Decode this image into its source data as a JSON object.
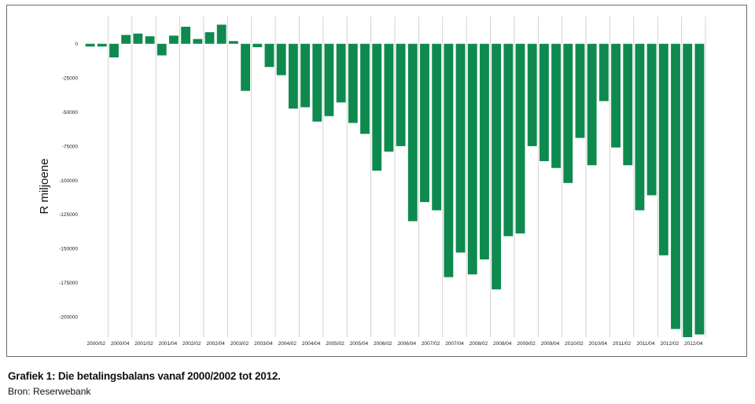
{
  "chart_data": {
    "type": "bar",
    "ylabel": "R miljoene",
    "ylim": [
      -215000,
      20000
    ],
    "yticks": [
      0,
      -25000,
      -50000,
      -75000,
      -100000,
      -125000,
      -150000,
      -175000,
      -200000
    ],
    "ytick_labels": [
      "0",
      "-25000",
      "-50000",
      "-75000",
      "-100000",
      "-125000",
      "-150000",
      "-175000",
      "-200000"
    ],
    "bar_color": "#0f8a4f",
    "grid": "vertical",
    "x_labels": [
      "2000/02",
      "2000/04",
      "2001/02",
      "2001/04",
      "2002/02",
      "2002/04",
      "2003/02",
      "2003/04",
      "2004/02",
      "2004/04",
      "2005/02",
      "2005/04",
      "2006/02",
      "2006/04",
      "2007/02",
      "2007/04",
      "2008/02",
      "2008/04",
      "2009/02",
      "2009/04",
      "2010/02",
      "2010/04",
      "2011/02",
      "2011/04",
      "2012/02",
      "2012/04"
    ],
    "values": [
      -2000,
      -2000,
      -10000,
      6500,
      7500,
      5500,
      -8500,
      6000,
      12500,
      3500,
      8500,
      14000,
      2000,
      -34500,
      -2500,
      -17000,
      -23000,
      -47500,
      -46500,
      -57000,
      -53000,
      -43000,
      -58000,
      -66000,
      -93000,
      -79000,
      -75000,
      -130000,
      -116000,
      -122000,
      -171000,
      -153000,
      -169000,
      -158000,
      -180000,
      -141000,
      -139000,
      -75000,
      -86000,
      -91000,
      -102000,
      -69000,
      -89000,
      -42000,
      -76000,
      -89000,
      -122000,
      -111000,
      -155000,
      -209000,
      -215000,
      -213000
    ]
  },
  "caption": "Grafiek 1: Die betalingsbalans vanaf 2000/2002 tot 2012.",
  "source": "Bron: Reserwebank"
}
